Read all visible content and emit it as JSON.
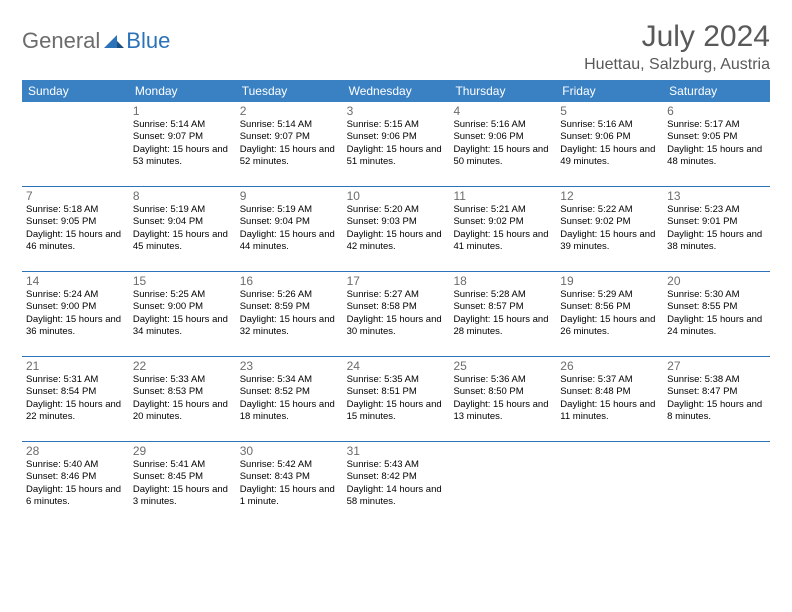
{
  "logo": {
    "text1": "General",
    "text2": "Blue"
  },
  "title": "July 2024",
  "location": "Huettau, Salzburg, Austria",
  "colors": {
    "header_bg": "#3a81c4",
    "accent": "#2c72b8",
    "text_gray": "#595959",
    "logo_gray": "#6c6c6c"
  },
  "dayNames": [
    "Sunday",
    "Monday",
    "Tuesday",
    "Wednesday",
    "Thursday",
    "Friday",
    "Saturday"
  ],
  "weeks": [
    [
      {
        "n": "",
        "sr": "",
        "ss": "",
        "dl": ""
      },
      {
        "n": "1",
        "sr": "Sunrise: 5:14 AM",
        "ss": "Sunset: 9:07 PM",
        "dl": "Daylight: 15 hours and 53 minutes."
      },
      {
        "n": "2",
        "sr": "Sunrise: 5:14 AM",
        "ss": "Sunset: 9:07 PM",
        "dl": "Daylight: 15 hours and 52 minutes."
      },
      {
        "n": "3",
        "sr": "Sunrise: 5:15 AM",
        "ss": "Sunset: 9:06 PM",
        "dl": "Daylight: 15 hours and 51 minutes."
      },
      {
        "n": "4",
        "sr": "Sunrise: 5:16 AM",
        "ss": "Sunset: 9:06 PM",
        "dl": "Daylight: 15 hours and 50 minutes."
      },
      {
        "n": "5",
        "sr": "Sunrise: 5:16 AM",
        "ss": "Sunset: 9:06 PM",
        "dl": "Daylight: 15 hours and 49 minutes."
      },
      {
        "n": "6",
        "sr": "Sunrise: 5:17 AM",
        "ss": "Sunset: 9:05 PM",
        "dl": "Daylight: 15 hours and 48 minutes."
      }
    ],
    [
      {
        "n": "7",
        "sr": "Sunrise: 5:18 AM",
        "ss": "Sunset: 9:05 PM",
        "dl": "Daylight: 15 hours and 46 minutes."
      },
      {
        "n": "8",
        "sr": "Sunrise: 5:19 AM",
        "ss": "Sunset: 9:04 PM",
        "dl": "Daylight: 15 hours and 45 minutes."
      },
      {
        "n": "9",
        "sr": "Sunrise: 5:19 AM",
        "ss": "Sunset: 9:04 PM",
        "dl": "Daylight: 15 hours and 44 minutes."
      },
      {
        "n": "10",
        "sr": "Sunrise: 5:20 AM",
        "ss": "Sunset: 9:03 PM",
        "dl": "Daylight: 15 hours and 42 minutes."
      },
      {
        "n": "11",
        "sr": "Sunrise: 5:21 AM",
        "ss": "Sunset: 9:02 PM",
        "dl": "Daylight: 15 hours and 41 minutes."
      },
      {
        "n": "12",
        "sr": "Sunrise: 5:22 AM",
        "ss": "Sunset: 9:02 PM",
        "dl": "Daylight: 15 hours and 39 minutes."
      },
      {
        "n": "13",
        "sr": "Sunrise: 5:23 AM",
        "ss": "Sunset: 9:01 PM",
        "dl": "Daylight: 15 hours and 38 minutes."
      }
    ],
    [
      {
        "n": "14",
        "sr": "Sunrise: 5:24 AM",
        "ss": "Sunset: 9:00 PM",
        "dl": "Daylight: 15 hours and 36 minutes."
      },
      {
        "n": "15",
        "sr": "Sunrise: 5:25 AM",
        "ss": "Sunset: 9:00 PM",
        "dl": "Daylight: 15 hours and 34 minutes."
      },
      {
        "n": "16",
        "sr": "Sunrise: 5:26 AM",
        "ss": "Sunset: 8:59 PM",
        "dl": "Daylight: 15 hours and 32 minutes."
      },
      {
        "n": "17",
        "sr": "Sunrise: 5:27 AM",
        "ss": "Sunset: 8:58 PM",
        "dl": "Daylight: 15 hours and 30 minutes."
      },
      {
        "n": "18",
        "sr": "Sunrise: 5:28 AM",
        "ss": "Sunset: 8:57 PM",
        "dl": "Daylight: 15 hours and 28 minutes."
      },
      {
        "n": "19",
        "sr": "Sunrise: 5:29 AM",
        "ss": "Sunset: 8:56 PM",
        "dl": "Daylight: 15 hours and 26 minutes."
      },
      {
        "n": "20",
        "sr": "Sunrise: 5:30 AM",
        "ss": "Sunset: 8:55 PM",
        "dl": "Daylight: 15 hours and 24 minutes."
      }
    ],
    [
      {
        "n": "21",
        "sr": "Sunrise: 5:31 AM",
        "ss": "Sunset: 8:54 PM",
        "dl": "Daylight: 15 hours and 22 minutes."
      },
      {
        "n": "22",
        "sr": "Sunrise: 5:33 AM",
        "ss": "Sunset: 8:53 PM",
        "dl": "Daylight: 15 hours and 20 minutes."
      },
      {
        "n": "23",
        "sr": "Sunrise: 5:34 AM",
        "ss": "Sunset: 8:52 PM",
        "dl": "Daylight: 15 hours and 18 minutes."
      },
      {
        "n": "24",
        "sr": "Sunrise: 5:35 AM",
        "ss": "Sunset: 8:51 PM",
        "dl": "Daylight: 15 hours and 15 minutes."
      },
      {
        "n": "25",
        "sr": "Sunrise: 5:36 AM",
        "ss": "Sunset: 8:50 PM",
        "dl": "Daylight: 15 hours and 13 minutes."
      },
      {
        "n": "26",
        "sr": "Sunrise: 5:37 AM",
        "ss": "Sunset: 8:48 PM",
        "dl": "Daylight: 15 hours and 11 minutes."
      },
      {
        "n": "27",
        "sr": "Sunrise: 5:38 AM",
        "ss": "Sunset: 8:47 PM",
        "dl": "Daylight: 15 hours and 8 minutes."
      }
    ],
    [
      {
        "n": "28",
        "sr": "Sunrise: 5:40 AM",
        "ss": "Sunset: 8:46 PM",
        "dl": "Daylight: 15 hours and 6 minutes."
      },
      {
        "n": "29",
        "sr": "Sunrise: 5:41 AM",
        "ss": "Sunset: 8:45 PM",
        "dl": "Daylight: 15 hours and 3 minutes."
      },
      {
        "n": "30",
        "sr": "Sunrise: 5:42 AM",
        "ss": "Sunset: 8:43 PM",
        "dl": "Daylight: 15 hours and 1 minute."
      },
      {
        "n": "31",
        "sr": "Sunrise: 5:43 AM",
        "ss": "Sunset: 8:42 PM",
        "dl": "Daylight: 14 hours and 58 minutes."
      },
      {
        "n": "",
        "sr": "",
        "ss": "",
        "dl": ""
      },
      {
        "n": "",
        "sr": "",
        "ss": "",
        "dl": ""
      },
      {
        "n": "",
        "sr": "",
        "ss": "",
        "dl": ""
      }
    ]
  ]
}
